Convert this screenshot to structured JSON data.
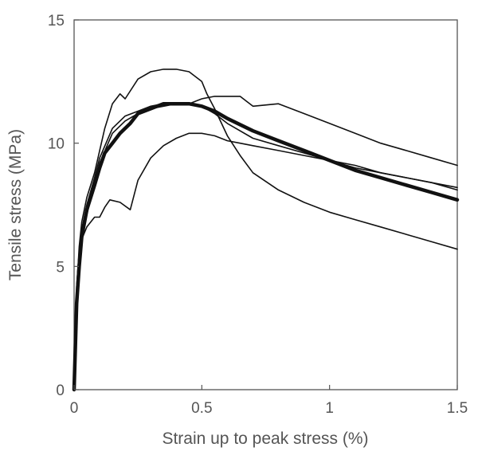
{
  "chart_data": {
    "type": "line",
    "title": "",
    "xlabel": "Strain up to peak stress (%)",
    "ylabel": "Tensile stress (MPa)",
    "xlim": [
      0,
      1.5
    ],
    "ylim": [
      0,
      15
    ],
    "xticks": [
      0,
      0.5,
      1,
      1.5
    ],
    "xtick_labels": [
      "0",
      "0.5",
      "1",
      "1.5"
    ],
    "yticks": [
      0,
      5,
      10,
      15
    ],
    "ytick_labels": [
      "0",
      "5",
      "10",
      "15"
    ],
    "grid": false,
    "legend": "none",
    "line_color": "#111111",
    "series": [
      {
        "x": [
          0,
          0.01,
          0.02,
          0.03,
          0.05,
          0.08,
          0.1,
          0.12,
          0.15,
          0.18,
          0.22,
          0.25,
          0.3,
          0.35,
          0.4,
          0.45,
          0.5,
          0.55,
          0.6,
          0.7,
          0.8,
          0.9,
          1.0,
          1.1,
          1.2,
          1.3,
          1.4,
          1.5
        ],
        "y": [
          0,
          3.5,
          5.0,
          6.2,
          7.3,
          8.3,
          9.0,
          9.6,
          10.0,
          10.4,
          10.8,
          11.2,
          11.4,
          11.6,
          11.6,
          11.6,
          11.5,
          11.3,
          11.0,
          10.5,
          10.1,
          9.7,
          9.3,
          8.9,
          8.6,
          8.3,
          8.0,
          7.7
        ],
        "width": 4.5
      },
      {
        "x": [
          0,
          0.01,
          0.02,
          0.03,
          0.05,
          0.08,
          0.1,
          0.12,
          0.15,
          0.18,
          0.2,
          0.25,
          0.3,
          0.35,
          0.4,
          0.45,
          0.5,
          0.52,
          0.55,
          0.6,
          0.65,
          0.7,
          0.8,
          0.9,
          1.0,
          1.1,
          1.2,
          1.3,
          1.4,
          1.5
        ],
        "y": [
          0,
          4.0,
          5.8,
          6.8,
          7.8,
          8.8,
          9.7,
          10.6,
          11.6,
          12.0,
          11.8,
          12.6,
          12.9,
          13.0,
          13.0,
          12.9,
          12.5,
          12.0,
          11.4,
          10.3,
          9.5,
          8.8,
          8.1,
          7.6,
          7.2,
          6.9,
          6.6,
          6.3,
          6.0,
          5.7
        ],
        "width": 1.6
      },
      {
        "x": [
          0,
          0.01,
          0.02,
          0.03,
          0.05,
          0.08,
          0.1,
          0.15,
          0.2,
          0.25,
          0.3,
          0.35,
          0.4,
          0.45,
          0.5,
          0.55,
          0.6,
          0.65,
          0.7,
          0.8,
          0.9,
          1.0,
          1.1,
          1.2,
          1.3,
          1.4,
          1.5
        ],
        "y": [
          0,
          4.2,
          5.6,
          6.5,
          7.5,
          8.6,
          9.4,
          10.6,
          11.1,
          11.3,
          11.5,
          11.6,
          11.6,
          11.6,
          11.8,
          11.9,
          11.9,
          11.9,
          11.5,
          11.6,
          11.2,
          10.8,
          10.4,
          10.0,
          9.7,
          9.4,
          9.1
        ],
        "width": 1.6
      },
      {
        "x": [
          0,
          0.01,
          0.02,
          0.03,
          0.05,
          0.08,
          0.1,
          0.12,
          0.14,
          0.18,
          0.22,
          0.25,
          0.3,
          0.35,
          0.4,
          0.45,
          0.5,
          0.55,
          0.6,
          0.65,
          0.7,
          0.8,
          0.9,
          1.0,
          1.1,
          1.2,
          1.3,
          1.4,
          1.5
        ],
        "y": [
          0,
          3.8,
          5.3,
          6.1,
          6.6,
          7.0,
          7.0,
          7.4,
          7.7,
          7.6,
          7.3,
          8.5,
          9.4,
          9.9,
          10.2,
          10.4,
          10.4,
          10.3,
          10.1,
          10.0,
          9.9,
          9.7,
          9.5,
          9.3,
          9.0,
          8.8,
          8.6,
          8.4,
          8.1
        ],
        "width": 1.6
      },
      {
        "x": [
          0,
          0.01,
          0.02,
          0.03,
          0.05,
          0.08,
          0.1,
          0.15,
          0.2,
          0.25,
          0.3,
          0.35,
          0.4,
          0.45,
          0.5,
          0.55,
          0.6,
          0.7,
          0.8,
          0.9,
          1.0,
          1.1,
          1.2,
          1.3,
          1.4,
          1.5
        ],
        "y": [
          0,
          3.6,
          5.1,
          6.0,
          7.1,
          8.4,
          9.2,
          10.4,
          10.9,
          11.2,
          11.4,
          11.5,
          11.6,
          11.6,
          11.5,
          11.2,
          10.8,
          10.2,
          9.9,
          9.6,
          9.3,
          9.1,
          8.8,
          8.6,
          8.4,
          8.2
        ],
        "width": 1.6
      }
    ]
  }
}
